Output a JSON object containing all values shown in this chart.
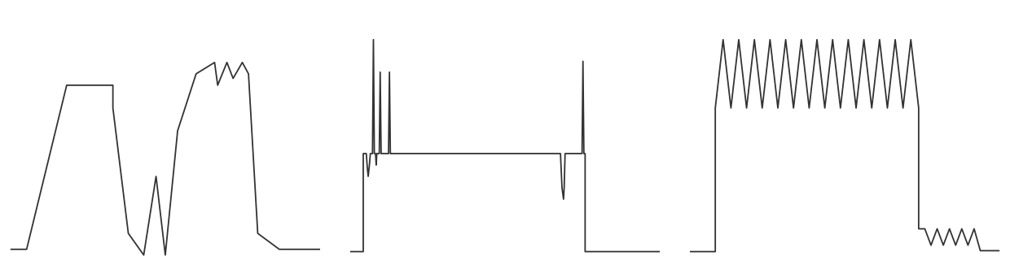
{
  "background_color": "#ffffff",
  "line_color": "#333333",
  "line_width": 1.3,
  "figsize": [
    12.4,
    3.36
  ],
  "dpi": 100
}
